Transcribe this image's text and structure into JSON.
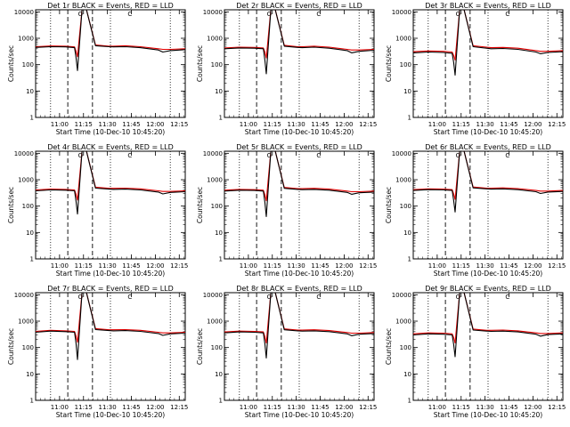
{
  "chart_data": [
    {
      "type": "line",
      "title": "Det 1r BLACK = Events, RED = LLD",
      "xlabel": "Start Time (10-Dec-10 10:45:20)",
      "ylabel": "Counts/sec",
      "x_ticks": [
        "11:00",
        "11:15",
        "11:30",
        "11:45",
        "12:00",
        "12:15"
      ],
      "y_ticks": [
        "1",
        "10",
        "100",
        "1000",
        "10000"
      ],
      "ylim": [
        1,
        12000
      ],
      "yscale": "log",
      "markers": [
        "O",
        "C"
      ],
      "x": [
        0,
        10,
        20,
        26,
        27,
        28,
        31,
        34,
        40,
        49,
        52,
        60,
        70,
        82,
        85,
        90,
        100
      ],
      "series": [
        {
          "name": "Events",
          "color": "#000000",
          "values": [
            450,
            480,
            470,
            440,
            180,
            60,
            12000,
            12000,
            520,
            480,
            470,
            480,
            440,
            360,
            300,
            340,
            370
          ]
        },
        {
          "name": "LLD",
          "color": "#e00000",
          "values": [
            480,
            510,
            500,
            470,
            320,
            200,
            12000,
            12000,
            560,
            500,
            500,
            520,
            480,
            400,
            380,
            380,
            400
          ]
        }
      ]
    },
    {
      "type": "line",
      "title": "Det 2r BLACK = Events, RED = LLD",
      "xlabel": "Start Time (10-Dec-10 10:45:20)",
      "ylabel": "Counts/sec",
      "x_ticks": [
        "11:00",
        "11:15",
        "11:30",
        "11:45",
        "12:00",
        "12:15"
      ],
      "y_ticks": [
        "1",
        "10",
        "100",
        "1000",
        "10000"
      ],
      "ylim": [
        1,
        12000
      ],
      "yscale": "log",
      "markers": [
        "O",
        "C"
      ],
      "x": [
        0,
        10,
        20,
        26,
        27,
        28,
        31,
        34,
        40,
        49,
        52,
        60,
        70,
        82,
        85,
        90,
        100
      ],
      "series": [
        {
          "name": "Events",
          "color": "#000000",
          "values": [
            400,
            430,
            420,
            400,
            150,
            45,
            12000,
            12000,
            500,
            450,
            440,
            460,
            420,
            340,
            280,
            320,
            350
          ]
        },
        {
          "name": "LLD",
          "color": "#e00000",
          "values": [
            430,
            460,
            450,
            430,
            300,
            180,
            12000,
            12000,
            540,
            480,
            480,
            500,
            460,
            380,
            360,
            360,
            380
          ]
        }
      ]
    },
    {
      "type": "line",
      "title": "Det 3r BLACK = Events, RED = LLD",
      "xlabel": "Start Time (10-Dec-10 10:45:20)",
      "ylabel": "Counts/sec",
      "x_ticks": [
        "11:00",
        "11:15",
        "11:30",
        "11:45",
        "12:00",
        "12:15"
      ],
      "y_ticks": [
        "1",
        "10",
        "100",
        "1000",
        "10000"
      ],
      "ylim": [
        1,
        12000
      ],
      "yscale": "log",
      "markers": [
        "O",
        "C"
      ],
      "x": [
        0,
        10,
        20,
        26,
        27,
        28,
        31,
        34,
        40,
        49,
        52,
        60,
        70,
        82,
        85,
        90,
        100
      ],
      "series": [
        {
          "name": "Events",
          "color": "#000000",
          "values": [
            280,
            300,
            290,
            270,
            120,
            40,
            12000,
            12000,
            480,
            420,
            400,
            410,
            380,
            300,
            260,
            290,
            310
          ]
        },
        {
          "name": "LLD",
          "color": "#e00000",
          "values": [
            310,
            330,
            320,
            300,
            220,
            150,
            12000,
            12000,
            520,
            460,
            440,
            450,
            420,
            340,
            320,
            320,
            340
          ]
        }
      ]
    },
    {
      "type": "line",
      "title": "Det 4r BLACK = Events, RED = LLD",
      "xlabel": "Start Time (10-Dec-10 10:45:20)",
      "ylabel": "Counts/sec",
      "x_ticks": [
        "11:00",
        "11:15",
        "11:30",
        "11:45",
        "12:00",
        "12:15"
      ],
      "y_ticks": [
        "1",
        "10",
        "100",
        "1000",
        "10000"
      ],
      "ylim": [
        1,
        12000
      ],
      "yscale": "log",
      "markers": [
        "O",
        "C"
      ],
      "x": [
        0,
        10,
        20,
        26,
        27,
        28,
        31,
        34,
        40,
        49,
        52,
        60,
        70,
        82,
        85,
        90,
        100
      ],
      "series": [
        {
          "name": "Events",
          "color": "#000000",
          "values": [
            380,
            410,
            400,
            380,
            150,
            50,
            12000,
            12000,
            480,
            440,
            430,
            440,
            410,
            340,
            290,
            330,
            350
          ]
        },
        {
          "name": "LLD",
          "color": "#e00000",
          "values": [
            410,
            440,
            430,
            410,
            280,
            170,
            12000,
            12000,
            520,
            470,
            470,
            480,
            450,
            380,
            360,
            360,
            380
          ]
        }
      ]
    },
    {
      "type": "line",
      "title": "Det 5r BLACK = Events, RED = LLD",
      "xlabel": "Start Time (10-Dec-10 10:45:20)",
      "ylabel": "Counts/sec",
      "x_ticks": [
        "11:00",
        "11:15",
        "11:30",
        "11:45",
        "12:00",
        "12:15"
      ],
      "y_ticks": [
        "1",
        "10",
        "100",
        "1000",
        "10000"
      ],
      "ylim": [
        1,
        12000
      ],
      "yscale": "log",
      "markers": [
        "O",
        "C"
      ],
      "x": [
        0,
        10,
        20,
        26,
        27,
        28,
        31,
        34,
        40,
        49,
        52,
        60,
        70,
        82,
        85,
        90,
        100
      ],
      "series": [
        {
          "name": "Events",
          "color": "#000000",
          "values": [
            370,
            400,
            390,
            370,
            140,
            40,
            12000,
            12000,
            470,
            430,
            420,
            430,
            400,
            330,
            280,
            320,
            340
          ]
        },
        {
          "name": "LLD",
          "color": "#e00000",
          "values": [
            400,
            430,
            420,
            400,
            270,
            160,
            12000,
            12000,
            510,
            460,
            460,
            470,
            440,
            370,
            350,
            350,
            370
          ]
        }
      ]
    },
    {
      "type": "line",
      "title": "Det 6r BLACK = Events, RED = LLD",
      "xlabel": "Start Time (10-Dec-10 10:45:20)",
      "ylabel": "Counts/sec",
      "x_ticks": [
        "11:00",
        "11:15",
        "11:30",
        "11:45",
        "12:00",
        "12:15"
      ],
      "y_ticks": [
        "1",
        "10",
        "100",
        "1000",
        "10000"
      ],
      "ylim": [
        1,
        12000
      ],
      "yscale": "log",
      "markers": [
        "O",
        "C"
      ],
      "x": [
        0,
        10,
        20,
        26,
        27,
        28,
        31,
        34,
        40,
        49,
        52,
        60,
        70,
        82,
        85,
        90,
        100
      ],
      "series": [
        {
          "name": "Events",
          "color": "#000000",
          "values": [
            390,
            420,
            410,
            390,
            160,
            60,
            12000,
            12000,
            490,
            450,
            440,
            450,
            420,
            350,
            300,
            340,
            360
          ]
        },
        {
          "name": "LLD",
          "color": "#e00000",
          "values": [
            420,
            450,
            440,
            420,
            290,
            180,
            12000,
            12000,
            530,
            480,
            480,
            490,
            460,
            390,
            370,
            370,
            390
          ]
        }
      ]
    },
    {
      "type": "line",
      "title": "Det 7r BLACK = Events, RED = LLD",
      "xlabel": "Start Time (10-Dec-10 10:45:20)",
      "ylabel": "Counts/sec",
      "x_ticks": [
        "11:00",
        "11:15",
        "11:30",
        "11:45",
        "12:00",
        "12:15"
      ],
      "y_ticks": [
        "1",
        "10",
        "100",
        "1000",
        "10000"
      ],
      "ylim": [
        1,
        12000
      ],
      "yscale": "log",
      "markers": [
        "O",
        "C"
      ],
      "x": [
        0,
        10,
        20,
        26,
        27,
        28,
        31,
        34,
        40,
        49,
        52,
        60,
        70,
        82,
        85,
        90,
        100
      ],
      "series": [
        {
          "name": "Events",
          "color": "#000000",
          "values": [
            380,
            420,
            400,
            380,
            140,
            35,
            12000,
            12000,
            480,
            440,
            430,
            440,
            410,
            340,
            290,
            330,
            350
          ]
        },
        {
          "name": "LLD",
          "color": "#e00000",
          "values": [
            410,
            450,
            430,
            410,
            270,
            160,
            12000,
            12000,
            520,
            470,
            470,
            480,
            450,
            380,
            360,
            360,
            380
          ]
        }
      ]
    },
    {
      "type": "line",
      "title": "Det 8r BLACK = Events, RED = LLD",
      "xlabel": "Start Time (10-Dec-10 10:45:20)",
      "ylabel": "Counts/sec",
      "x_ticks": [
        "11:00",
        "11:15",
        "11:30",
        "11:45",
        "12:00",
        "12:15"
      ],
      "y_ticks": [
        "1",
        "10",
        "100",
        "1000",
        "10000"
      ],
      "ylim": [
        1,
        12000
      ],
      "yscale": "log",
      "markers": [
        "O",
        "C"
      ],
      "x": [
        0,
        10,
        20,
        26,
        27,
        28,
        31,
        34,
        40,
        49,
        52,
        60,
        70,
        82,
        85,
        90,
        100
      ],
      "series": [
        {
          "name": "Events",
          "color": "#000000",
          "values": [
            360,
            390,
            380,
            360,
            140,
            40,
            12000,
            12000,
            470,
            430,
            420,
            430,
            400,
            330,
            280,
            320,
            340
          ]
        },
        {
          "name": "LLD",
          "color": "#e00000",
          "values": [
            390,
            420,
            410,
            390,
            260,
            150,
            12000,
            12000,
            510,
            460,
            460,
            470,
            440,
            370,
            350,
            350,
            370
          ]
        }
      ]
    },
    {
      "type": "line",
      "title": "Det 9r BLACK = Events, RED = LLD",
      "xlabel": "Start Time (10-Dec-10 10:45:20)",
      "ylabel": "Counts/sec",
      "x_ticks": [
        "11:00",
        "11:15",
        "11:30",
        "11:45",
        "12:00",
        "12:15"
      ],
      "y_ticks": [
        "1",
        "10",
        "100",
        "1000",
        "10000"
      ],
      "ylim": [
        1,
        12000
      ],
      "yscale": "log",
      "markers": [
        "O",
        "C"
      ],
      "x": [
        0,
        10,
        20,
        26,
        27,
        28,
        31,
        34,
        40,
        49,
        52,
        60,
        70,
        82,
        85,
        90,
        100
      ],
      "series": [
        {
          "name": "Events",
          "color": "#000000",
          "values": [
            300,
            330,
            320,
            300,
            130,
            45,
            12000,
            12000,
            460,
            420,
            410,
            420,
            390,
            320,
            270,
            310,
            330
          ]
        },
        {
          "name": "LLD",
          "color": "#e00000",
          "values": [
            330,
            360,
            350,
            330,
            240,
            150,
            12000,
            12000,
            500,
            450,
            450,
            460,
            430,
            360,
            340,
            340,
            360
          ]
        }
      ]
    }
  ]
}
